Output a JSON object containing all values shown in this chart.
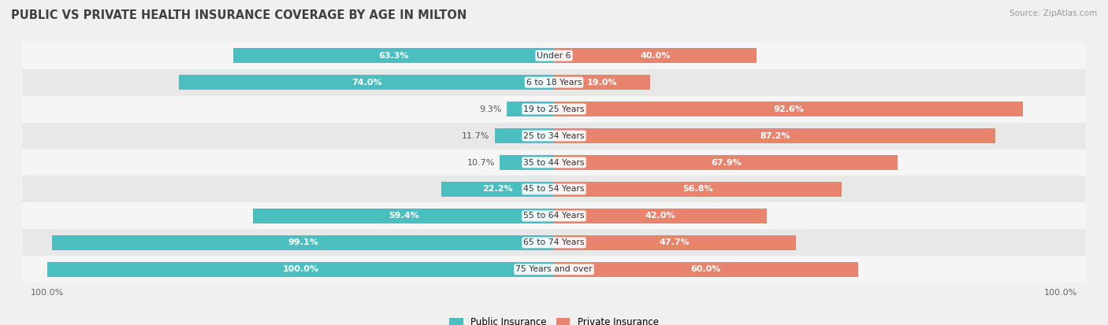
{
  "title": "PUBLIC VS PRIVATE HEALTH INSURANCE COVERAGE BY AGE IN MILTON",
  "source": "Source: ZipAtlas.com",
  "categories": [
    "Under 6",
    "6 to 18 Years",
    "19 to 25 Years",
    "25 to 34 Years",
    "35 to 44 Years",
    "45 to 54 Years",
    "55 to 64 Years",
    "65 to 74 Years",
    "75 Years and over"
  ],
  "public_values": [
    63.3,
    74.0,
    9.3,
    11.7,
    10.7,
    22.2,
    59.4,
    99.1,
    100.0
  ],
  "private_values": [
    40.0,
    19.0,
    92.6,
    87.2,
    67.9,
    56.8,
    42.0,
    47.7,
    60.0
  ],
  "public_color": "#4bbfbf",
  "private_color": "#e8836e",
  "background_color": "#f0f0f0",
  "row_bg_odd": "#f5f5f5",
  "row_bg_even": "#e8e8e8",
  "title_color": "#404040",
  "max_value": 100.0,
  "pub_threshold": 15,
  "legend_labels": [
    "Public Insurance",
    "Private Insurance"
  ]
}
